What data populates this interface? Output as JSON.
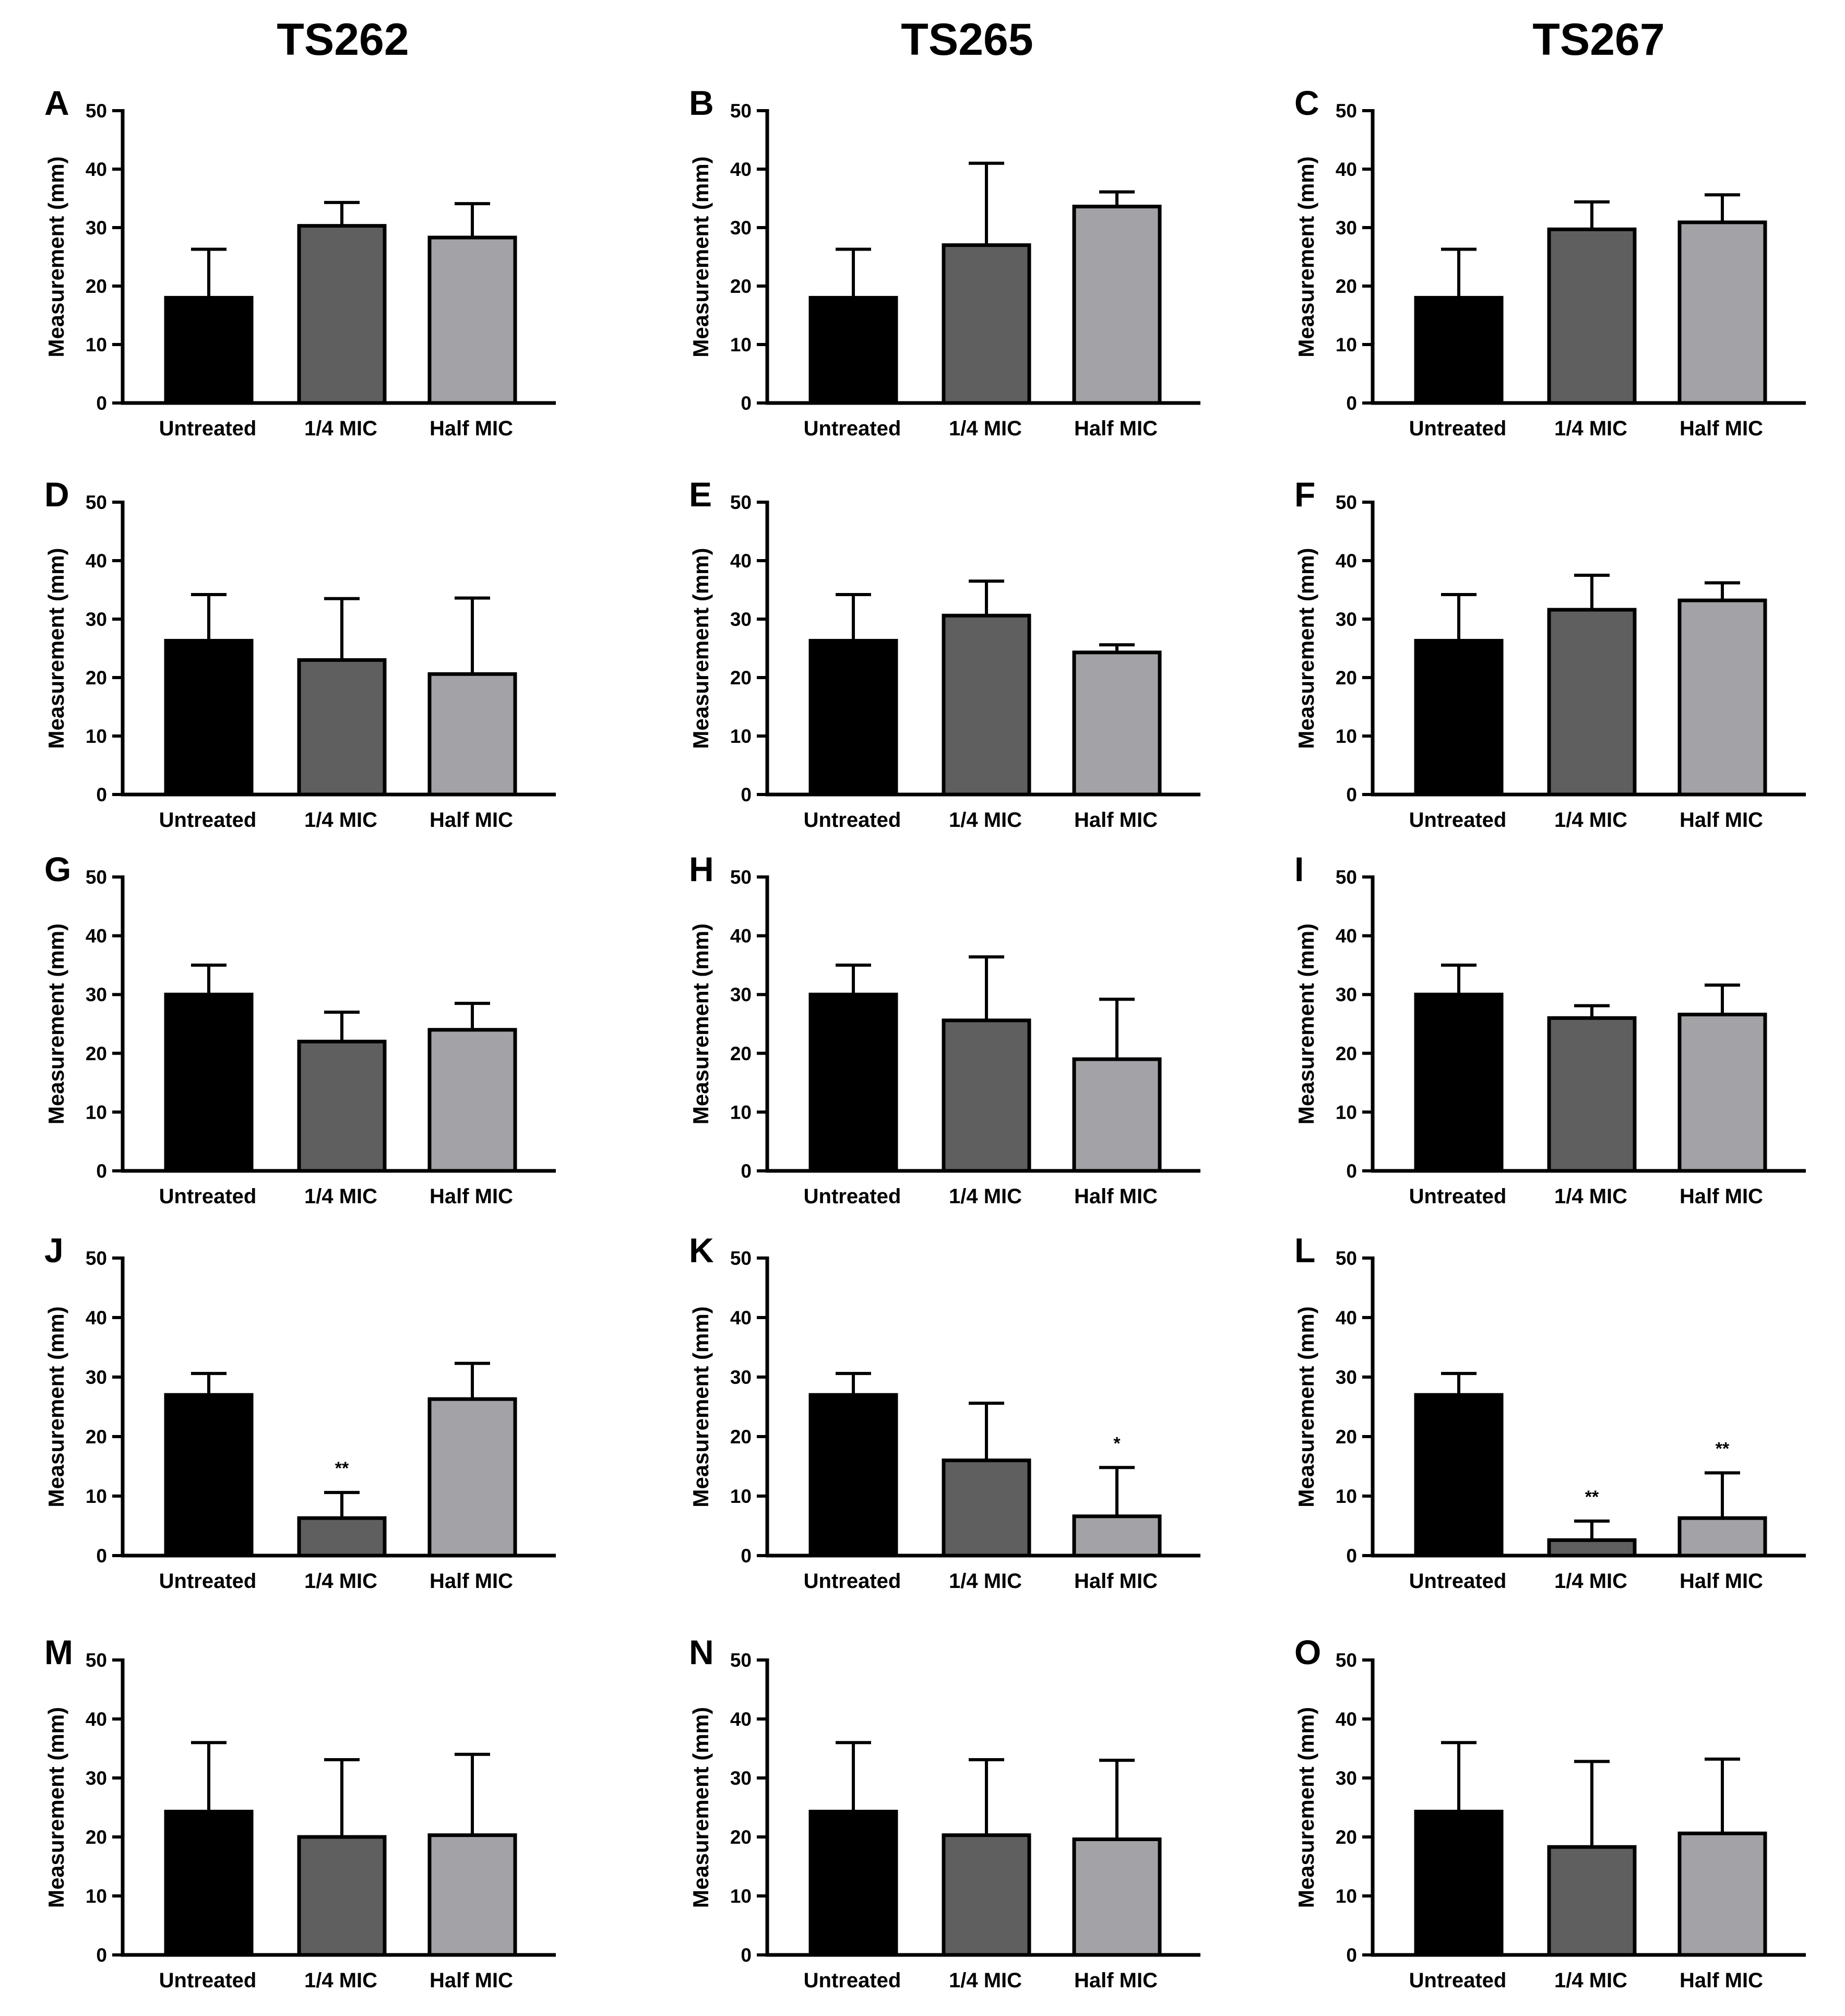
{
  "columns": [
    "TS262",
    "TS265",
    "TS267"
  ],
  "chart_data": [
    {
      "panel": "A",
      "type": "bar",
      "categories": [
        "Untreated",
        "1/4 MIC",
        "Half MIC"
      ],
      "values": [
        18,
        30.3,
        28.3
      ],
      "errors": [
        8.3,
        4,
        5.8
      ],
      "significance": [
        "",
        "",
        ""
      ],
      "ylabel": "Measurement (mm)",
      "ylim": [
        0,
        50
      ],
      "yticks": [
        "0",
        "10",
        "20",
        "30",
        "40",
        "50"
      ]
    },
    {
      "panel": "B",
      "type": "bar",
      "categories": [
        "Untreated",
        "1/4 MIC",
        "Half MIC"
      ],
      "values": [
        18,
        27,
        33.6
      ],
      "errors": [
        8.3,
        14,
        2.5
      ],
      "significance": [
        "",
        "",
        ""
      ],
      "ylabel": "Measurement (mm)",
      "ylim": [
        0,
        50
      ],
      "yticks": [
        "0",
        "10",
        "20",
        "30",
        "40",
        "50"
      ]
    },
    {
      "panel": "C",
      "type": "bar",
      "categories": [
        "Untreated",
        "1/4 MIC",
        "Half MIC"
      ],
      "values": [
        18,
        29.7,
        30.9
      ],
      "errors": [
        8.3,
        4.7,
        4.7
      ],
      "significance": [
        "",
        "",
        ""
      ],
      "ylabel": "Measurement (mm)",
      "ylim": [
        0,
        50
      ],
      "yticks": [
        "0",
        "10",
        "20",
        "30",
        "40",
        "50"
      ]
    },
    {
      "panel": "D",
      "type": "bar",
      "categories": [
        "Untreated",
        "1/4 MIC",
        "Half MIC"
      ],
      "values": [
        26.3,
        23,
        20.6
      ],
      "errors": [
        7.9,
        10.5,
        13
      ],
      "significance": [
        "",
        "",
        ""
      ],
      "ylabel": "Measurement (mm)",
      "ylim": [
        0,
        50
      ],
      "yticks": [
        "0",
        "10",
        "20",
        "30",
        "40",
        "50"
      ]
    },
    {
      "panel": "E",
      "type": "bar",
      "categories": [
        "Untreated",
        "1/4 MIC",
        "Half MIC"
      ],
      "values": [
        26.3,
        30.6,
        24.3
      ],
      "errors": [
        7.9,
        5.9,
        1.3
      ],
      "significance": [
        "",
        "",
        ""
      ],
      "ylabel": "Measurement (mm)",
      "ylim": [
        0,
        50
      ],
      "yticks": [
        "0",
        "10",
        "20",
        "30",
        "40",
        "50"
      ]
    },
    {
      "panel": "F",
      "type": "bar",
      "categories": [
        "Untreated",
        "1/4 MIC",
        "Half MIC"
      ],
      "values": [
        26.3,
        31.6,
        33.2
      ],
      "errors": [
        7.9,
        5.9,
        3
      ],
      "significance": [
        "",
        "",
        ""
      ],
      "ylabel": "Measurement (mm)",
      "ylim": [
        0,
        50
      ],
      "yticks": [
        "0",
        "10",
        "20",
        "30",
        "40",
        "50"
      ]
    },
    {
      "panel": "G",
      "type": "bar",
      "categories": [
        "Untreated",
        "1/4 MIC",
        "Half MIC"
      ],
      "values": [
        30,
        22,
        24
      ],
      "errors": [
        5,
        5,
        4.5
      ],
      "significance": [
        "",
        "",
        ""
      ],
      "ylabel": "Measurement (mm)",
      "ylim": [
        0,
        50
      ],
      "yticks": [
        "0",
        "10",
        "20",
        "30",
        "40",
        "50"
      ]
    },
    {
      "panel": "H",
      "type": "bar",
      "categories": [
        "Untreated",
        "1/4 MIC",
        "Half MIC"
      ],
      "values": [
        30,
        25.6,
        19
      ],
      "errors": [
        5,
        10.8,
        10.2
      ],
      "significance": [
        "",
        "",
        ""
      ],
      "ylabel": "Measurement (mm)",
      "ylim": [
        0,
        50
      ],
      "yticks": [
        "0",
        "10",
        "20",
        "30",
        "40",
        "50"
      ]
    },
    {
      "panel": "I",
      "type": "bar",
      "categories": [
        "Untreated",
        "1/4 MIC",
        "Half MIC"
      ],
      "values": [
        30,
        26,
        26.6
      ],
      "errors": [
        5,
        2.1,
        5
      ],
      "significance": [
        "",
        "",
        ""
      ],
      "ylabel": "Measurement (mm)",
      "ylim": [
        0,
        50
      ],
      "yticks": [
        "0",
        "10",
        "20",
        "30",
        "40",
        "50"
      ]
    },
    {
      "panel": "J",
      "type": "bar",
      "categories": [
        "Untreated",
        "1/4 MIC",
        "Half MIC"
      ],
      "values": [
        27,
        6.3,
        26.3
      ],
      "errors": [
        3.6,
        4.3,
        6
      ],
      "significance": [
        "",
        "**",
        ""
      ],
      "ylabel": "Measurement (mm)",
      "ylim": [
        0,
        50
      ],
      "yticks": [
        "0",
        "10",
        "20",
        "30",
        "40",
        "50"
      ]
    },
    {
      "panel": "K",
      "type": "bar",
      "categories": [
        "Untreated",
        "1/4 MIC",
        "Half MIC"
      ],
      "values": [
        27,
        16,
        6.6
      ],
      "errors": [
        3.6,
        9.6,
        8.2
      ],
      "significance": [
        "",
        "",
        "*"
      ],
      "ylabel": "Measurement (mm)",
      "ylim": [
        0,
        50
      ],
      "yticks": [
        "0",
        "10",
        "20",
        "30",
        "40",
        "50"
      ]
    },
    {
      "panel": "L",
      "type": "bar",
      "categories": [
        "Untreated",
        "1/4 MIC",
        "Half MIC"
      ],
      "values": [
        27,
        2.6,
        6.3
      ],
      "errors": [
        3.6,
        3.2,
        7.6
      ],
      "significance": [
        "",
        "**",
        "**"
      ],
      "ylabel": "Measurement (mm)",
      "ylim": [
        0,
        50
      ],
      "yticks": [
        "0",
        "10",
        "20",
        "30",
        "40",
        "50"
      ]
    },
    {
      "panel": "M",
      "type": "bar",
      "categories": [
        "Untreated",
        "1/4 MIC",
        "Half MIC"
      ],
      "values": [
        24.3,
        20,
        20.3
      ],
      "errors": [
        11.7,
        13.1,
        13.7
      ],
      "significance": [
        "",
        "",
        ""
      ],
      "ylabel": "Measurement (mm)",
      "ylim": [
        0,
        50
      ],
      "yticks": [
        "0",
        "10",
        "20",
        "30",
        "40",
        "50"
      ]
    },
    {
      "panel": "N",
      "type": "bar",
      "categories": [
        "Untreated",
        "1/4 MIC",
        "Half MIC"
      ],
      "values": [
        24.3,
        20.3,
        19.6
      ],
      "errors": [
        11.7,
        12.8,
        13.4
      ],
      "significance": [
        "",
        "",
        ""
      ],
      "ylabel": "Measurement (mm)",
      "ylim": [
        0,
        50
      ],
      "yticks": [
        "0",
        "10",
        "20",
        "30",
        "40",
        "50"
      ]
    },
    {
      "panel": "O",
      "type": "bar",
      "categories": [
        "Untreated",
        "1/4 MIC",
        "Half MIC"
      ],
      "values": [
        24.3,
        18.3,
        20.6
      ],
      "errors": [
        11.7,
        14.5,
        12.6
      ],
      "significance": [
        "",
        "",
        ""
      ],
      "ylabel": "Measurement (mm)",
      "ylim": [
        0,
        50
      ],
      "yticks": [
        "0",
        "10",
        "20",
        "30",
        "40",
        "50"
      ]
    }
  ],
  "colors": {
    "Untreated": "#000000",
    "1/4 MIC": "#5f5f5f",
    "Half MIC": "#a3a2a6"
  }
}
